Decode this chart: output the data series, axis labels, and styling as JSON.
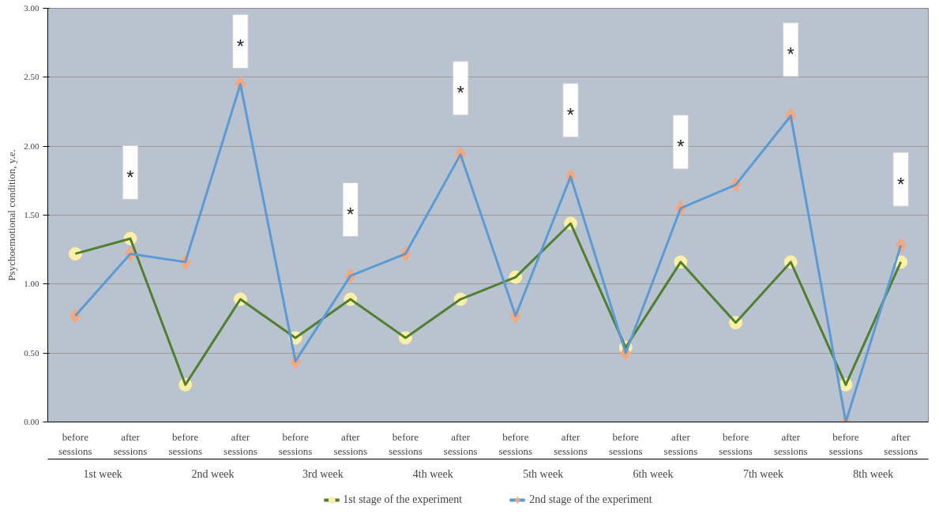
{
  "chart_data": {
    "type": "line",
    "ylabel": "Psychoemotional condition, y.e.",
    "categories": [
      "before sessions",
      "after sessions",
      "before sessions",
      "after sessions",
      "before sessions",
      "after sessions",
      "before sessions",
      "after sessions",
      "before sessions",
      "after sessions",
      "before sessions",
      "after sessions",
      "before sessions",
      "after sessions",
      "before sessions",
      "after sessions"
    ],
    "series": [
      {
        "name": "1st stage of the experiment",
        "color": "#4f7f2f",
        "marker": "circle",
        "values": [
          1.22,
          1.33,
          0.27,
          0.89,
          0.61,
          0.89,
          0.61,
          0.89,
          1.05,
          1.44,
          0.54,
          1.16,
          0.72,
          1.16,
          0.27,
          1.16
        ]
      },
      {
        "name": "2nd stage of the experiment",
        "color": "#5b9bd5",
        "marker": "diamond",
        "values": [
          0.77,
          1.22,
          1.16,
          2.45,
          0.44,
          1.06,
          1.22,
          1.94,
          0.77,
          1.78,
          0.5,
          1.55,
          1.72,
          2.22,
          0.0,
          1.28
        ]
      }
    ],
    "ylim": [
      0,
      3
    ],
    "yticks": [
      {
        "value": 0,
        "label": "0.00"
      },
      {
        "value": 0.5,
        "label": "0.50"
      },
      {
        "value": 1,
        "label": "1.00"
      },
      {
        "value": 1.5,
        "label": "1.50"
      },
      {
        "value": 2,
        "label": "2.00"
      },
      {
        "value": 2.5,
        "label": "2.50"
      },
      {
        "value": 3,
        "label": "3.00"
      }
    ],
    "grid": "y",
    "legend": "bottom",
    "annotations": [
      "*",
      "*",
      "*",
      "*",
      "*",
      "*",
      "*",
      "*",
      "1st week",
      "2nd week",
      "3rd week",
      "4th week",
      "5th week",
      "6th week",
      "7th week",
      "8th week"
    ]
  }
}
